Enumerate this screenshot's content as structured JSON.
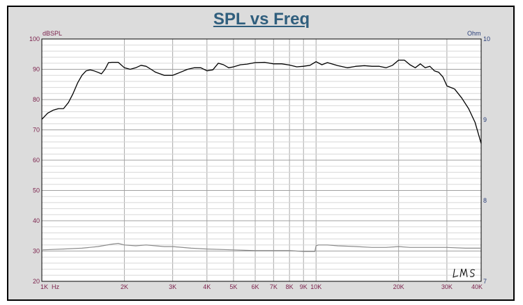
{
  "chart_data": {
    "type": "line",
    "title": "SPL vs Freq",
    "ylabel_left": "dBSPL",
    "ylabel_right": "Ohm",
    "x_scale": "log",
    "xlim": [
      1000,
      40000
    ],
    "ylim": [
      20,
      100
    ],
    "ylim_right": [
      7,
      10
    ],
    "grid": true,
    "x_ticks": [
      {
        "value": 1000,
        "label": "1K  Hz"
      },
      {
        "value": 2000,
        "label": "2K"
      },
      {
        "value": 3000,
        "label": "3K"
      },
      {
        "value": 4000,
        "label": "4K"
      },
      {
        "value": 5000,
        "label": "5K"
      },
      {
        "value": 6000,
        "label": "6K"
      },
      {
        "value": 7000,
        "label": "7K"
      },
      {
        "value": 8000,
        "label": "8K"
      },
      {
        "value": 9000,
        "label": "9K"
      },
      {
        "value": 10000,
        "label": "10K"
      },
      {
        "value": 20000,
        "label": "20K"
      },
      {
        "value": 30000,
        "label": "30K"
      },
      {
        "value": 40000,
        "label": "40K"
      }
    ],
    "y_ticks": [
      "20",
      "30",
      "40",
      "50",
      "60",
      "70",
      "80",
      "90",
      "100"
    ],
    "y_ticks_right": [
      "7",
      "8",
      "9",
      "10"
    ],
    "series": [
      {
        "axis": "left",
        "color": "#000000",
        "x": [
          1000,
          1050,
          1100,
          1150,
          1200,
          1250,
          1300,
          1350,
          1400,
          1450,
          1500,
          1550,
          1600,
          1650,
          1700,
          1750,
          1800,
          1900,
          2000,
          2100,
          2200,
          2300,
          2400,
          2500,
          2600,
          2800,
          3000,
          3200,
          3400,
          3600,
          3800,
          4000,
          4200,
          4400,
          4600,
          4800,
          5000,
          5300,
          5600,
          6000,
          6500,
          7000,
          7500,
          8000,
          8500,
          9000,
          9500,
          10000,
          10500,
          11000,
          12000,
          13000,
          14000,
          15000,
          16000,
          17000,
          18000,
          19000,
          20000,
          21000,
          22000,
          23000,
          24000,
          25000,
          26000,
          27000,
          28000,
          29000,
          30000,
          32000,
          34000,
          36000,
          38000,
          40000
        ],
        "y": [
          73.5,
          75.5,
          76.5,
          77,
          77,
          79,
          82,
          85.5,
          88,
          89.5,
          89.8,
          89.5,
          89,
          88.5,
          90,
          92.2,
          92.3,
          92.3,
          90.5,
          90,
          90.5,
          91.3,
          91,
          90,
          89,
          88,
          88,
          89,
          90,
          90.5,
          90.5,
          89.5,
          89.8,
          92,
          91.5,
          90.5,
          90.8,
          91.5,
          91.7,
          92.2,
          92.3,
          91.8,
          91.8,
          91.4,
          90.8,
          91,
          91.3,
          92.5,
          91.5,
          92.2,
          91.2,
          90.5,
          91,
          91.2,
          91,
          91,
          90.5,
          91.3,
          93,
          93,
          91.5,
          90.5,
          91.8,
          90.5,
          91,
          89.5,
          89,
          87.5,
          84.5,
          83.5,
          80.5,
          77,
          72.5,
          65.5
        ]
      },
      {
        "axis": "right",
        "color": "#8c8c8c",
        "x": [
          1000,
          1200,
          1400,
          1600,
          1800,
          1900,
          2000,
          2200,
          2400,
          2600,
          2800,
          3000,
          3500,
          4000,
          5000,
          6000,
          7000,
          8000,
          9000,
          9900,
          10000,
          10200,
          11000,
          12000,
          14000,
          16000,
          18000,
          20000,
          22000,
          25000,
          30000,
          35000,
          40000
        ],
        "y": [
          7.39,
          7.4,
          7.41,
          7.43,
          7.46,
          7.47,
          7.45,
          7.44,
          7.45,
          7.44,
          7.43,
          7.43,
          7.41,
          7.4,
          7.39,
          7.38,
          7.38,
          7.38,
          7.37,
          7.37,
          7.44,
          7.45,
          7.45,
          7.44,
          7.43,
          7.42,
          7.42,
          7.43,
          7.42,
          7.42,
          7.42,
          7.41,
          7.41
        ]
      }
    ]
  },
  "watermark": "LMS"
}
